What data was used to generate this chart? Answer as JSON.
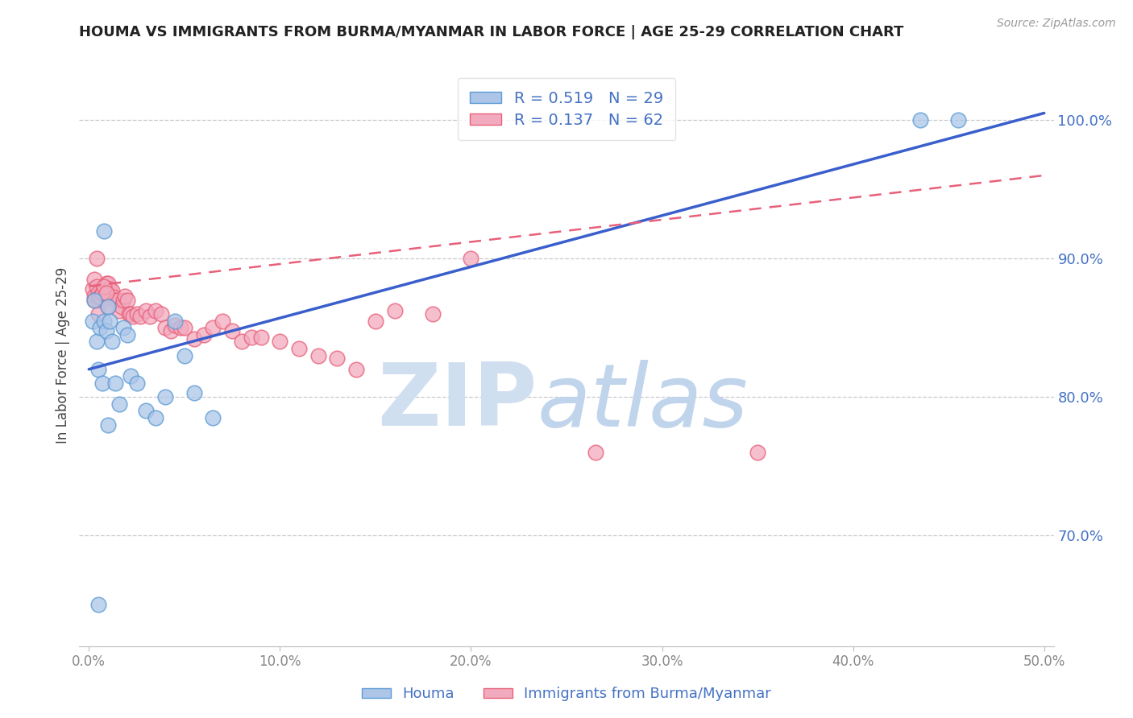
{
  "title": "HOUMA VS IMMIGRANTS FROM BURMA/MYANMAR IN LABOR FORCE | AGE 25-29 CORRELATION CHART",
  "source": "Source: ZipAtlas.com",
  "ylabel": "In Labor Force | Age 25-29",
  "xlim": [
    -0.005,
    0.505
  ],
  "ylim": [
    0.62,
    1.04
  ],
  "xticks": [
    0.0,
    0.1,
    0.2,
    0.3,
    0.4,
    0.5
  ],
  "yticks_right": [
    0.7,
    0.8,
    0.9,
    1.0
  ],
  "ytick_labels_right": [
    "70.0%",
    "80.0%",
    "90.0%",
    "100.0%"
  ],
  "xtick_labels": [
    "0.0%",
    "10.0%",
    "20.0%",
    "30.0%",
    "40.0%",
    "50.0%"
  ],
  "grid_yticks": [
    0.7,
    0.8,
    0.9,
    1.0
  ],
  "houma_color": "#adc6e8",
  "burma_color": "#f2aabe",
  "houma_edge_color": "#5b9bd5",
  "burma_edge_color": "#e8607a",
  "line_blue_color": "#3a5fcd",
  "line_pink_color": "#e8607a",
  "legend_R1": "R = 0.519",
  "legend_N1": "N = 29",
  "legend_R2": "R = 0.137",
  "legend_N2": "N = 62",
  "blue_line_x0": 0.0,
  "blue_line_y0": 0.82,
  "blue_line_x1": 0.5,
  "blue_line_y1": 1.005,
  "pink_line_x0": 0.0,
  "pink_line_y0": 0.88,
  "pink_line_x1": 0.5,
  "pink_line_y1": 0.96,
  "houma_x": [
    0.002,
    0.003,
    0.004,
    0.005,
    0.006,
    0.007,
    0.008,
    0.009,
    0.01,
    0.011,
    0.012,
    0.014,
    0.016,
    0.018,
    0.02,
    0.022,
    0.025,
    0.03,
    0.035,
    0.04,
    0.045,
    0.05,
    0.055,
    0.065,
    0.008,
    0.01,
    0.435,
    0.455,
    0.005
  ],
  "houma_y": [
    0.855,
    0.87,
    0.84,
    0.82,
    0.85,
    0.81,
    0.855,
    0.848,
    0.865,
    0.855,
    0.84,
    0.81,
    0.795,
    0.85,
    0.845,
    0.815,
    0.81,
    0.79,
    0.785,
    0.8,
    0.855,
    0.83,
    0.803,
    0.785,
    0.92,
    0.78,
    1.0,
    1.0,
    0.65
  ],
  "burma_x": [
    0.002,
    0.003,
    0.003,
    0.004,
    0.005,
    0.005,
    0.006,
    0.007,
    0.008,
    0.009,
    0.01,
    0.011,
    0.012,
    0.013,
    0.014,
    0.015,
    0.016,
    0.017,
    0.018,
    0.019,
    0.02,
    0.021,
    0.022,
    0.023,
    0.025,
    0.027,
    0.03,
    0.032,
    0.035,
    0.038,
    0.04,
    0.043,
    0.045,
    0.048,
    0.05,
    0.055,
    0.06,
    0.065,
    0.07,
    0.075,
    0.08,
    0.085,
    0.09,
    0.1,
    0.11,
    0.12,
    0.13,
    0.14,
    0.15,
    0.16,
    0.18,
    0.2,
    0.003,
    0.004,
    0.005,
    0.006,
    0.007,
    0.008,
    0.009,
    0.01,
    0.265,
    0.35
  ],
  "burma_y": [
    0.878,
    0.873,
    0.885,
    0.88,
    0.875,
    0.87,
    0.873,
    0.87,
    0.878,
    0.882,
    0.882,
    0.878,
    0.877,
    0.872,
    0.87,
    0.87,
    0.862,
    0.865,
    0.87,
    0.873,
    0.87,
    0.86,
    0.86,
    0.858,
    0.86,
    0.858,
    0.862,
    0.858,
    0.862,
    0.86,
    0.85,
    0.848,
    0.852,
    0.85,
    0.85,
    0.842,
    0.845,
    0.85,
    0.855,
    0.848,
    0.84,
    0.843,
    0.843,
    0.84,
    0.835,
    0.83,
    0.828,
    0.82,
    0.855,
    0.862,
    0.86,
    0.9,
    0.87,
    0.9,
    0.86,
    0.872,
    0.875,
    0.88,
    0.875,
    0.865,
    0.76,
    0.76
  ]
}
